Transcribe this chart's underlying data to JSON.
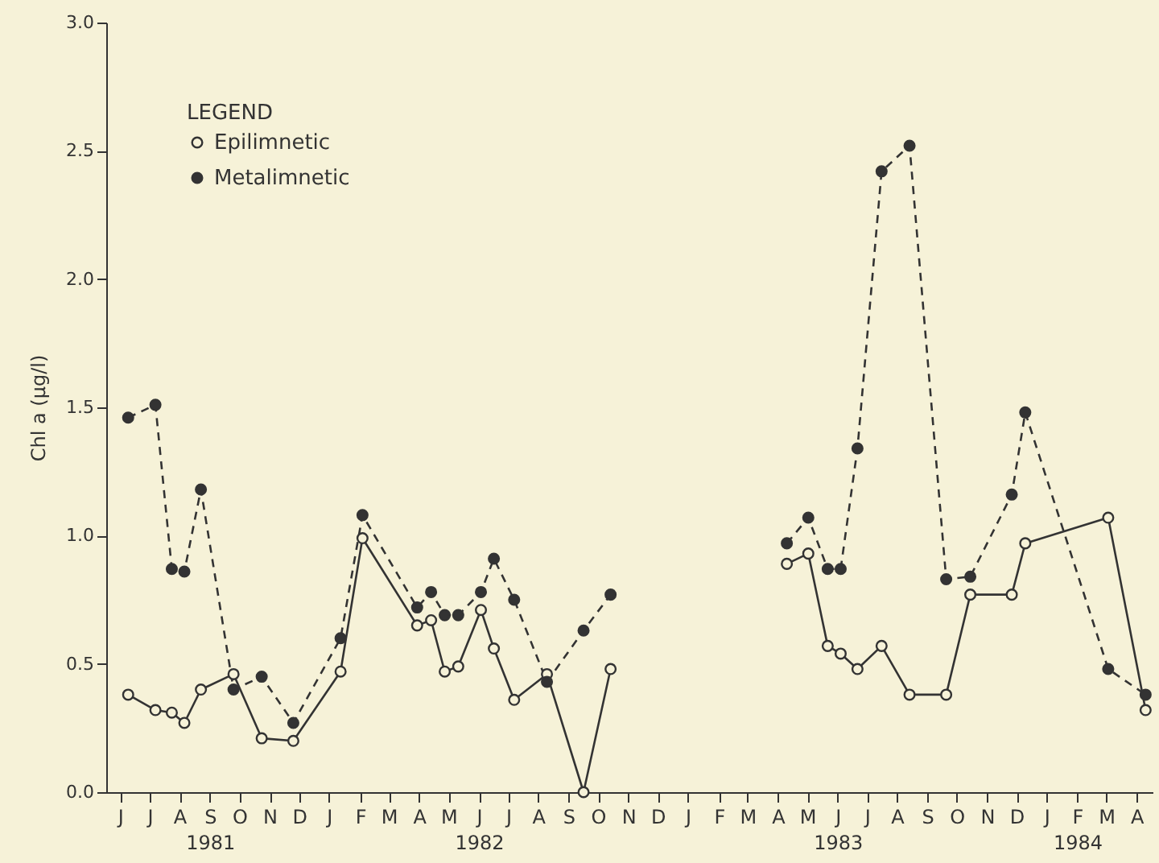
{
  "chart_data": {
    "type": "line",
    "xlabel": null,
    "ylabel": "Chl a (μg/l)",
    "legend_title": "LEGEND",
    "legend": "top left",
    "grid": false,
    "marker": "circle",
    "x": [
      "1981-06-23",
      "1981-07-21",
      "1981-08-07",
      "1981-08-20",
      "1981-09-06",
      "1981-10-09",
      "1981-11-07",
      "1981-12-09",
      "1982-01-27",
      "1982-02-17",
      "1982-04-13",
      "1982-04-27",
      "1982-05-11",
      "1982-05-25",
      "1982-06-17",
      "1982-06-30",
      "1982-07-21",
      "1982-08-24",
      "1982-09-30",
      "1982-10-28",
      "1983-01-15",
      "1983-04-24",
      "1983-05-16",
      "1983-06-05",
      "1983-06-18",
      "1983-07-05",
      "1983-07-30",
      "1983-08-28",
      "1983-10-04",
      "1983-10-29",
      "1983-12-10",
      "1983-12-24",
      "1984-03-17",
      "1984-04-24"
    ],
    "series": [
      {
        "name": "Epilimnetic",
        "color": "#333333",
        "line_style": "solid",
        "values": [
          0.38,
          0.32,
          0.31,
          0.27,
          0.4,
          0.46,
          0.21,
          0.2,
          0.47,
          0.99,
          0.65,
          0.67,
          0.47,
          0.49,
          0.71,
          0.56,
          0.36,
          0.46,
          0.0,
          0.48,
          null,
          0.89,
          0.93,
          0.57,
          0.54,
          0.48,
          0.57,
          0.38,
          0.38,
          0.77,
          0.77,
          0.97,
          1.07,
          0.32
        ]
      },
      {
        "name": "Metalimnetic",
        "color": "#333333",
        "line_style": "dashed",
        "values": [
          1.46,
          1.51,
          0.87,
          0.86,
          1.18,
          0.4,
          0.45,
          0.27,
          0.6,
          1.08,
          0.72,
          0.78,
          0.69,
          0.69,
          0.78,
          0.91,
          0.75,
          0.43,
          0.63,
          0.77,
          null,
          0.97,
          1.07,
          0.87,
          0.87,
          1.34,
          2.42,
          2.52,
          0.83,
          0.84,
          1.16,
          1.48,
          0.48,
          0.38
        ]
      }
    ],
    "xlim": [
      "1981-06-01",
      "1984-05-01"
    ],
    "xticks": [
      {
        "value": "1981-06-15",
        "label": "J"
      },
      {
        "value": "1981-07-15",
        "label": "J"
      },
      {
        "value": "1981-08-15",
        "label": "A"
      },
      {
        "value": "1981-09-15",
        "label": "S\n1981"
      },
      {
        "value": "1981-10-15",
        "label": "O"
      },
      {
        "value": "1981-11-15",
        "label": "N"
      },
      {
        "value": "1981-12-15",
        "label": "D"
      },
      {
        "value": "1982-01-15",
        "label": "J"
      },
      {
        "value": "1982-02-15",
        "label": "F"
      },
      {
        "value": "1982-03-15",
        "label": "M"
      },
      {
        "value": "1982-04-15",
        "label": "A"
      },
      {
        "value": "1982-05-15",
        "label": "M"
      },
      {
        "value": "1982-06-15",
        "label": "J\n1982"
      },
      {
        "value": "1982-07-15",
        "label": "J"
      },
      {
        "value": "1982-08-15",
        "label": "A"
      },
      {
        "value": "1982-09-15",
        "label": "S"
      },
      {
        "value": "1982-10-15",
        "label": "O"
      },
      {
        "value": "1982-11-15",
        "label": "N"
      },
      {
        "value": "1982-12-15",
        "label": "D"
      },
      {
        "value": "1983-01-15",
        "label": "J"
      },
      {
        "value": "1983-02-15",
        "label": "F"
      },
      {
        "value": "1983-03-15",
        "label": "M"
      },
      {
        "value": "1983-04-15",
        "label": "A"
      },
      {
        "value": "1983-05-15",
        "label": "M"
      },
      {
        "value": "1983-06-15",
        "label": "J\n1983"
      },
      {
        "value": "1983-07-15",
        "label": "J"
      },
      {
        "value": "1983-08-15",
        "label": "A"
      },
      {
        "value": "1983-09-15",
        "label": "S"
      },
      {
        "value": "1983-10-15",
        "label": "O"
      },
      {
        "value": "1983-11-15",
        "label": "N"
      },
      {
        "value": "1983-12-15",
        "label": "D"
      },
      {
        "value": "1984-01-15",
        "label": "J"
      },
      {
        "value": "1984-02-15",
        "label": "F\n1984"
      },
      {
        "value": "1984-03-15",
        "label": "M"
      },
      {
        "value": "1984-04-15",
        "label": "A"
      }
    ],
    "ylim": [
      0,
      3.0
    ],
    "yticks": [
      {
        "value": 0,
        "label": "0.0"
      },
      {
        "value": 0.5,
        "label": "0.5"
      },
      {
        "value": 1,
        "label": "1.0"
      },
      {
        "value": 1.5,
        "label": "1.5"
      },
      {
        "value": 2,
        "label": "2.0"
      },
      {
        "value": 2.5,
        "label": "2.5"
      },
      {
        "value": 3,
        "label": "3.0"
      }
    ]
  }
}
